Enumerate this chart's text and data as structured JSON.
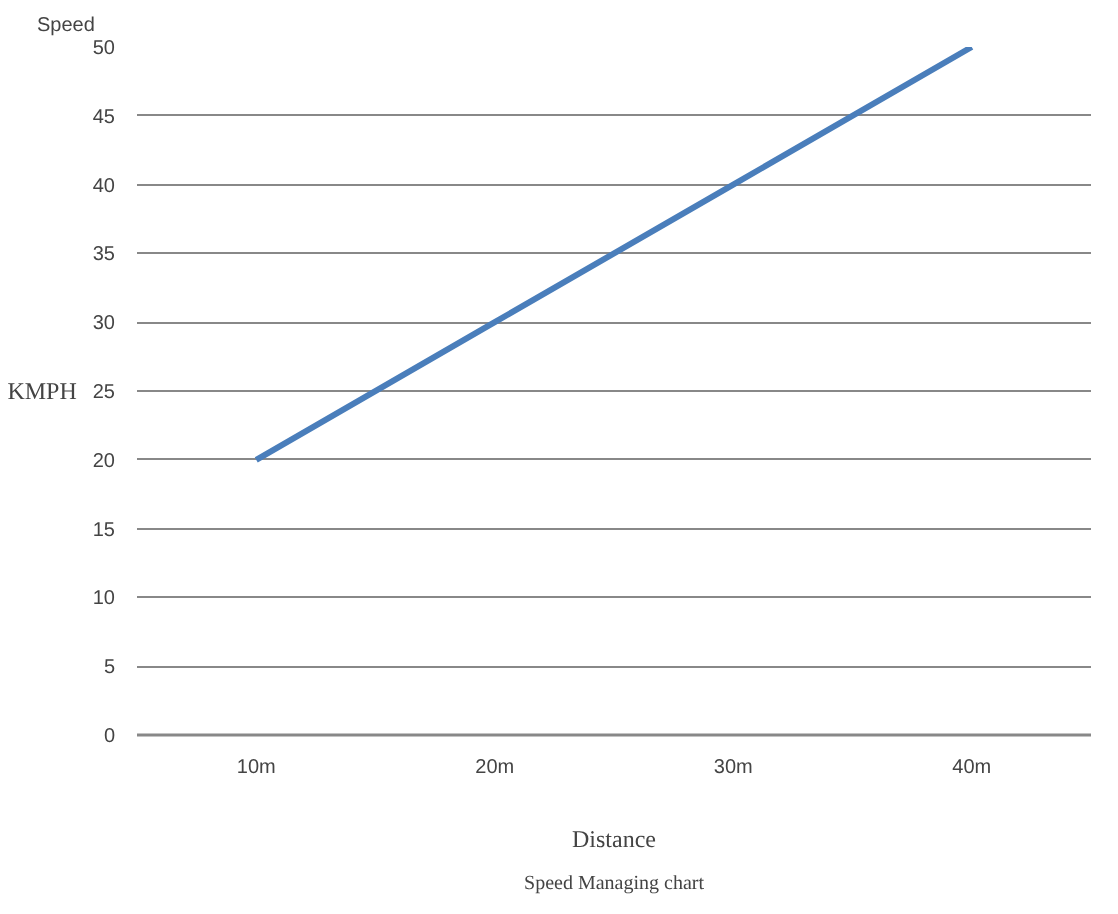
{
  "chart_data": {
    "type": "line",
    "title": "Speed",
    "xlabel": "Distance",
    "ylabel": "KMPH",
    "categories": [
      "10m",
      "20m",
      "30m",
      "40m"
    ],
    "series": [
      {
        "color": "#4a7ebb",
        "values": [
          20,
          30,
          40,
          50
        ]
      }
    ],
    "ylim": [
      0,
      50
    ],
    "yticks": [
      0,
      5,
      10,
      15,
      20,
      25,
      30,
      35,
      40,
      45,
      50
    ],
    "grid": "y",
    "annotations": [
      "Speed Managing chart"
    ]
  }
}
